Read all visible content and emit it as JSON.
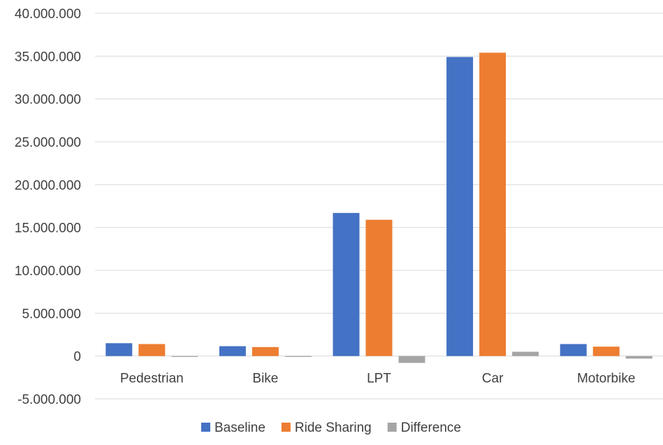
{
  "chart_data": {
    "type": "bar",
    "categories": [
      "Pedestrian",
      "Bike",
      "LPT",
      "Car",
      "Motorbike"
    ],
    "series": [
      {
        "name": "Baseline",
        "color": "#4472C4",
        "values": [
          1500000,
          1150000,
          16700000,
          34900000,
          1400000
        ]
      },
      {
        "name": "Ride Sharing",
        "color": "#ED7D31",
        "values": [
          1400000,
          1050000,
          15900000,
          35400000,
          1100000
        ]
      },
      {
        "name": "Difference",
        "color": "#A5A5A5",
        "values": [
          -100000,
          -100000,
          -800000,
          500000,
          -300000
        ]
      }
    ],
    "ylim": [
      -5000000,
      40000000
    ],
    "y_ticks": [
      -5000000,
      0,
      5000000,
      10000000,
      15000000,
      20000000,
      25000000,
      30000000,
      35000000,
      40000000
    ],
    "y_tick_labels": [
      "-5.000.000",
      "0",
      "5.000.000",
      "10.000.000",
      "15.000.000",
      "20.000.000",
      "25.000.000",
      "30.000.000",
      "35.000.000",
      "40.000.000"
    ],
    "grid": true,
    "legend": "bottom",
    "title": "",
    "xlabel": "",
    "ylabel": ""
  }
}
